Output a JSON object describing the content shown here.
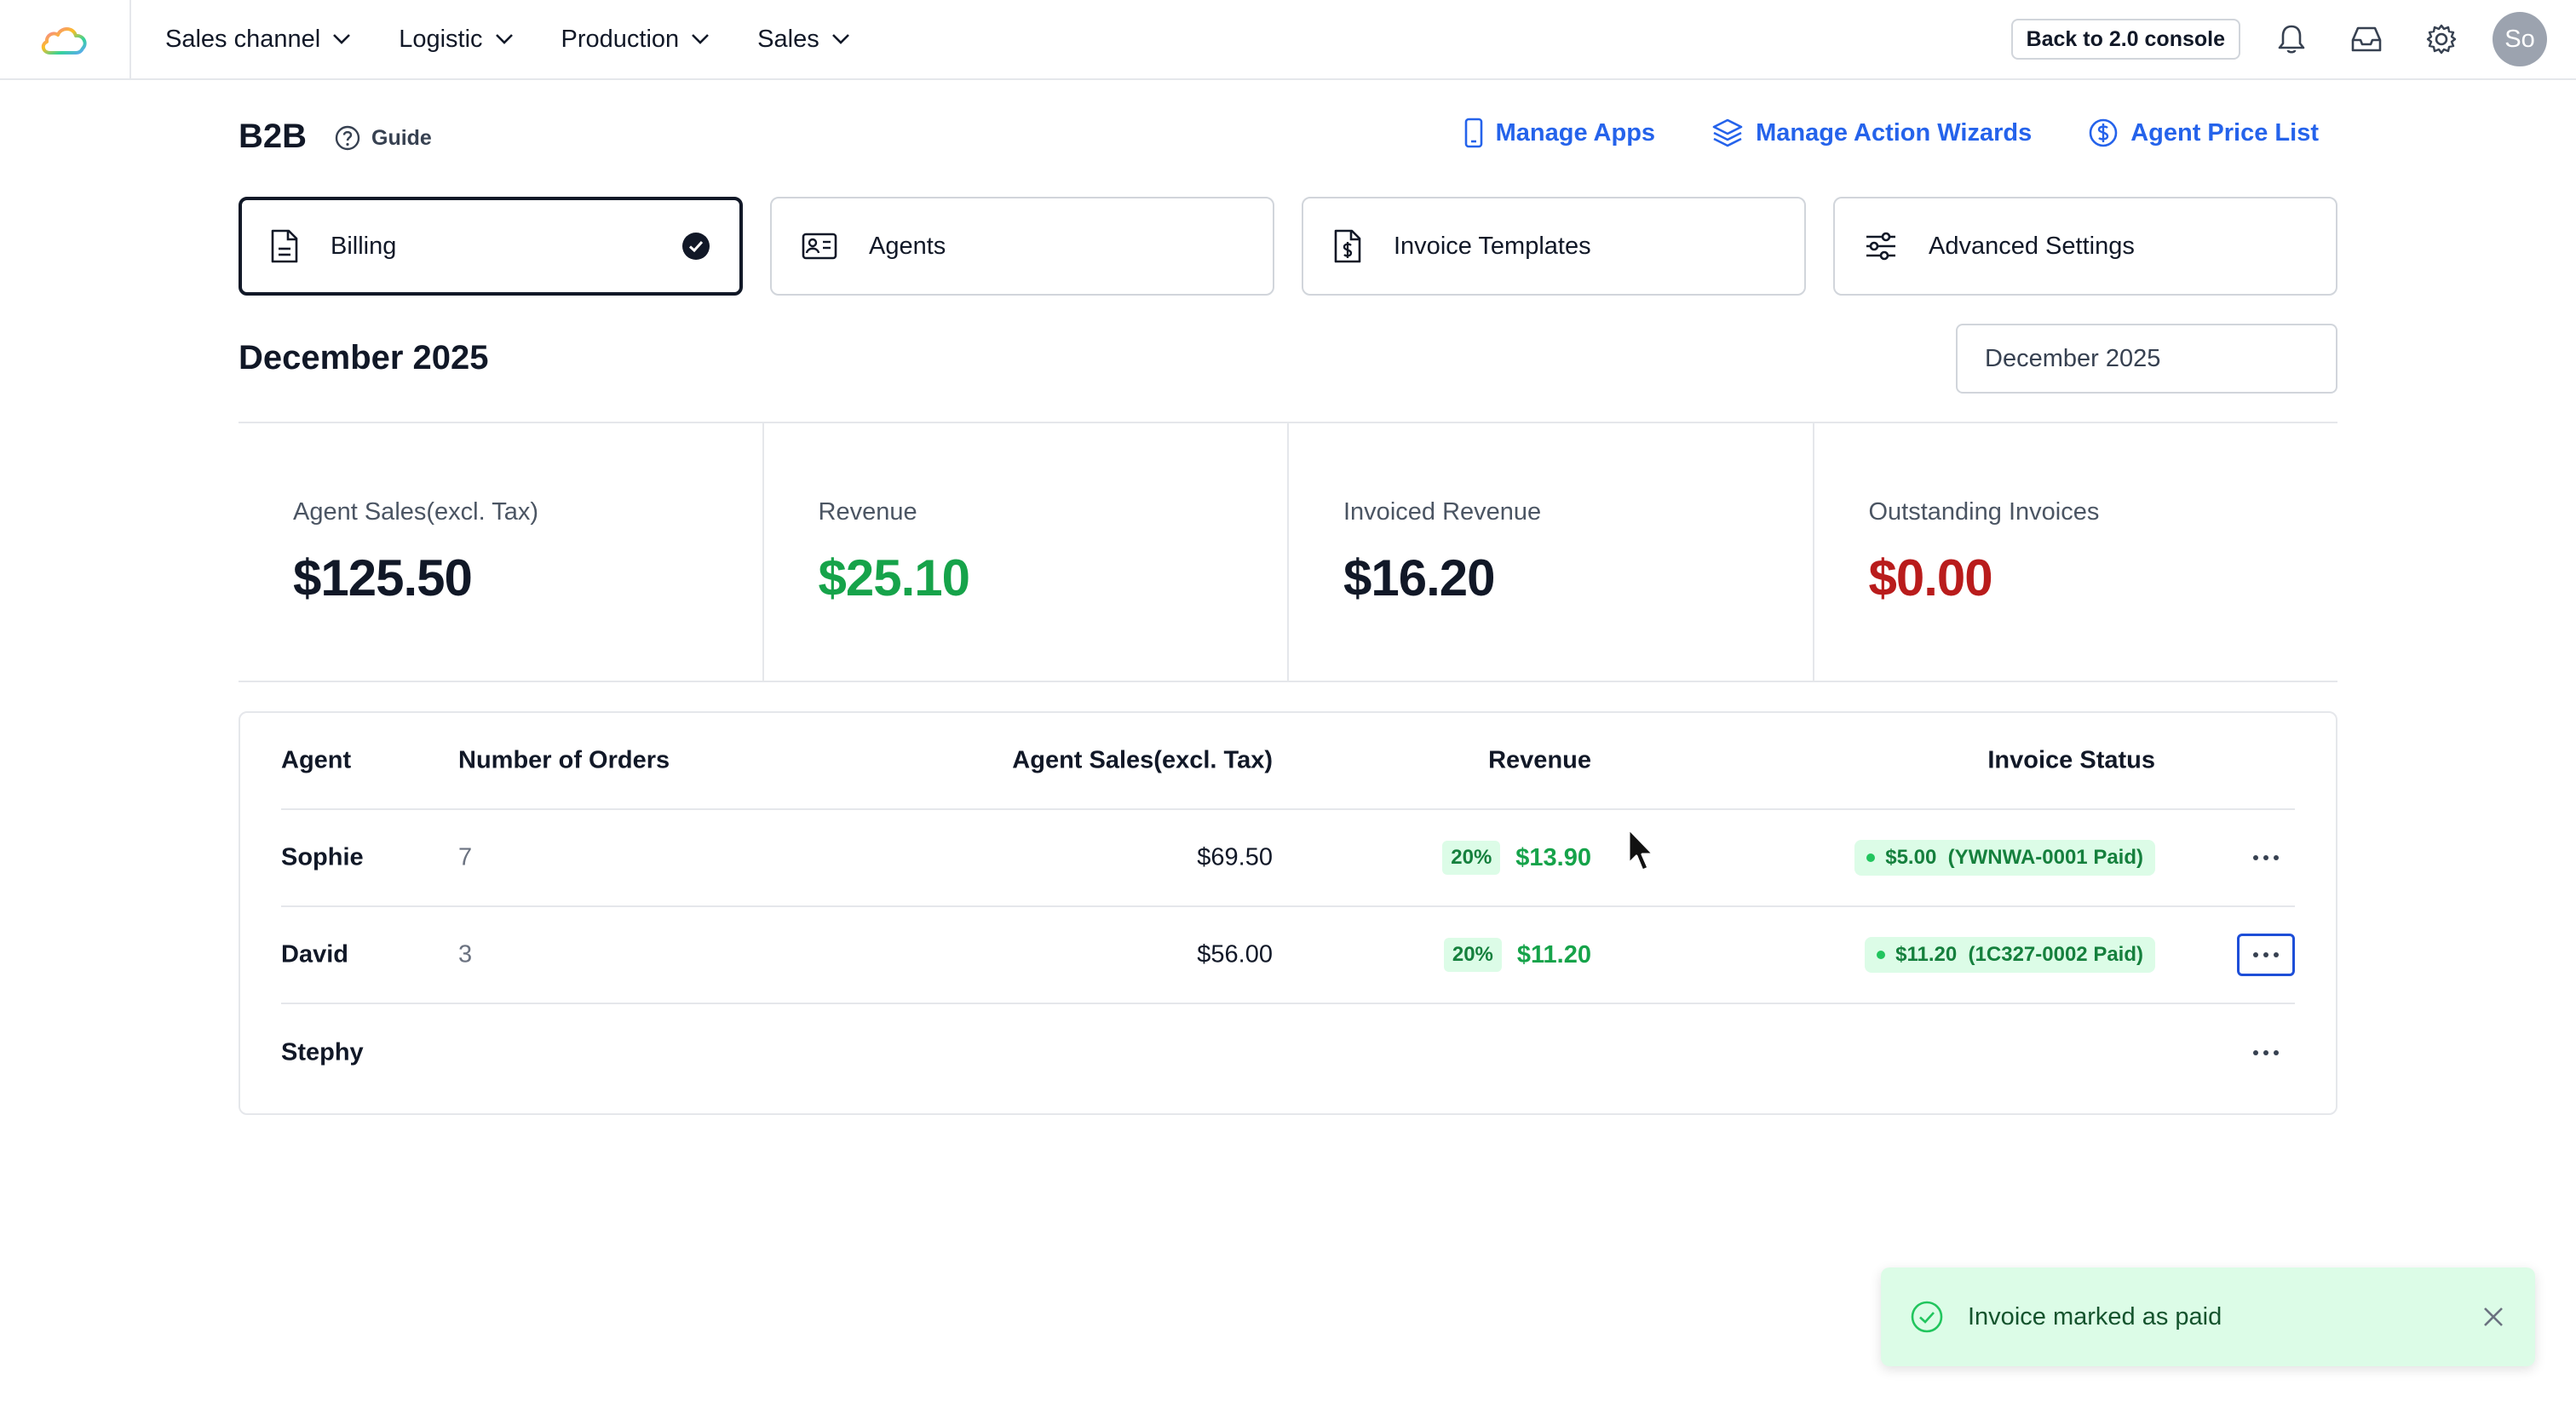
{
  "nav": {
    "items": [
      {
        "label": "Sales channel"
      },
      {
        "label": "Logistic"
      },
      {
        "label": "Production"
      },
      {
        "label": "Sales"
      }
    ],
    "back_button": "Back to 2.0 console",
    "avatar_initials": "So"
  },
  "header": {
    "title": "B2B",
    "guide_label": "Guide",
    "links": [
      {
        "label": "Manage Apps",
        "icon": "phone-icon"
      },
      {
        "label": "Manage Action Wizards",
        "icon": "layers-icon"
      },
      {
        "label": "Agent Price List",
        "icon": "dollar-circle-icon"
      }
    ]
  },
  "tabs": [
    {
      "label": "Billing",
      "icon": "document-icon",
      "active": true
    },
    {
      "label": "Agents",
      "icon": "id-card-icon",
      "active": false
    },
    {
      "label": "Invoice Templates",
      "icon": "invoice-dollar-icon",
      "active": false
    },
    {
      "label": "Advanced Settings",
      "icon": "sliders-icon",
      "active": false
    }
  ],
  "period": {
    "title": "December 2025",
    "selector_value": "December 2025"
  },
  "stats": [
    {
      "label": "Agent Sales(excl. Tax)",
      "value": "$125.50",
      "color": "#111827"
    },
    {
      "label": "Revenue",
      "value": "$25.10",
      "color": "#16a34a"
    },
    {
      "label": "Invoiced Revenue",
      "value": "$16.20",
      "color": "#111827"
    },
    {
      "label": "Outstanding Invoices",
      "value": "$0.00",
      "color": "#b91c1c"
    }
  ],
  "table": {
    "headers": {
      "agent": "Agent",
      "orders": "Number of Orders",
      "sales": "Agent Sales(excl. Tax)",
      "revenue": "Revenue",
      "status": "Invoice Status"
    },
    "rows": [
      {
        "agent": "Sophie",
        "orders": "7",
        "sales": "$69.50",
        "pct": "20%",
        "revenue": "$13.90",
        "status": "$5.00  (YWNWA-0001 Paid)"
      },
      {
        "agent": "David",
        "orders": "3",
        "sales": "$56.00",
        "pct": "20%",
        "revenue": "$11.20",
        "status": "$11.20  (1C327-0002 Paid)"
      },
      {
        "agent": "Stephy",
        "orders": "",
        "sales": "",
        "pct": "",
        "revenue": "",
        "status": ""
      }
    ]
  },
  "toast": {
    "message": "Invoice marked as paid"
  },
  "colors": {
    "accent": "#2563eb",
    "success": "#16a34a",
    "danger": "#b91c1c"
  }
}
